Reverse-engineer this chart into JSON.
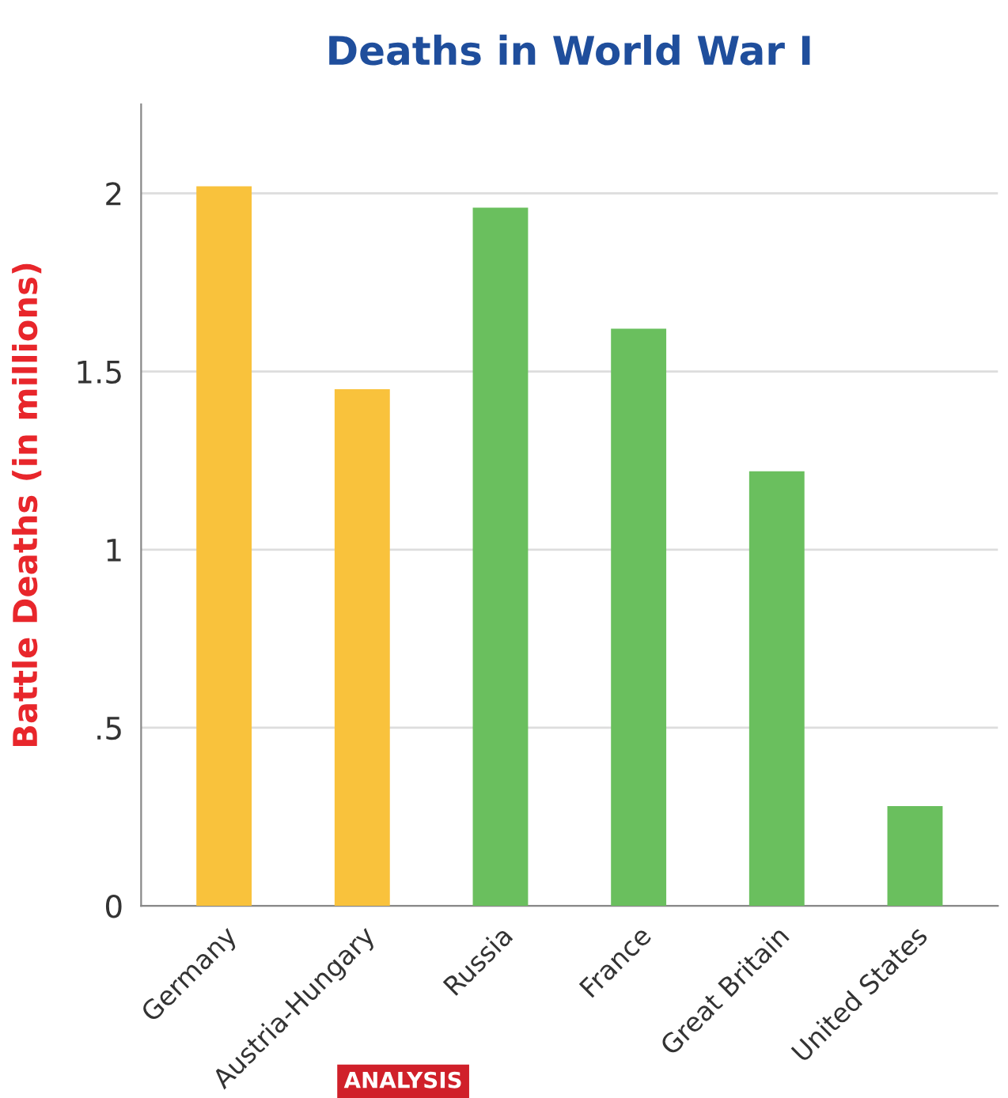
{
  "chart_data": {
    "type": "bar",
    "title": "Deaths in World War I",
    "ylabel": "Battle Deaths (in millions)",
    "categories": [
      "Germany",
      "Austria-Hungary",
      "Russia",
      "France",
      "Great Britain",
      "United States"
    ],
    "values": [
      2.02,
      1.45,
      1.96,
      1.62,
      1.22,
      0.28
    ],
    "colors": [
      "#f9c23c",
      "#f9c23c",
      "#6abf5e",
      "#6abf5e",
      "#6abf5e",
      "#6abf5e"
    ],
    "ylim": [
      0,
      2.25
    ],
    "yticks": [
      0,
      {
        "value": 0.5,
        "label": ".5"
      },
      1,
      1.5,
      2
    ],
    "grid": "y",
    "annotations": [
      "ANALYSIS"
    ]
  }
}
